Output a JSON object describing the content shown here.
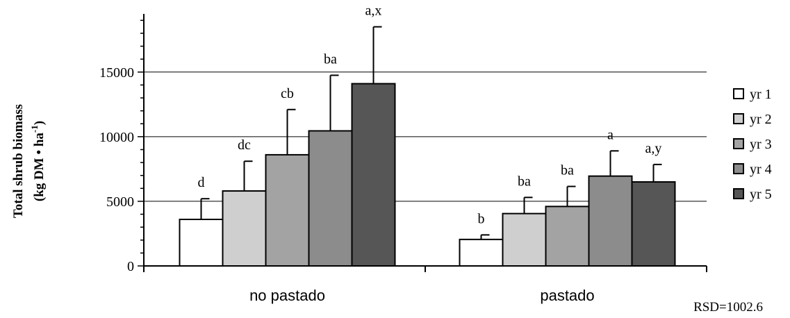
{
  "chart_data": {
    "type": "bar",
    "categories": [
      "no pastado",
      "pastado"
    ],
    "series": [
      {
        "name": "yr 1",
        "color": "#ffffff",
        "values": [
          3600,
          2050
        ],
        "errors": [
          5200,
          2400
        ],
        "letters": [
          "d",
          "b"
        ]
      },
      {
        "name": "yr 2",
        "color": "#cfcfcf",
        "values": [
          5800,
          4050
        ],
        "errors": [
          8100,
          5300
        ],
        "letters": [
          "dc",
          "ba"
        ]
      },
      {
        "name": "yr 3",
        "color": "#a3a3a3",
        "values": [
          8600,
          4600
        ],
        "errors": [
          12100,
          6150
        ],
        "letters": [
          "cb",
          "ba"
        ]
      },
      {
        "name": "yr 4",
        "color": "#8c8c8c",
        "values": [
          10450,
          6950
        ],
        "errors": [
          14750,
          8900
        ],
        "letters": [
          "ba",
          "a"
        ]
      },
      {
        "name": "yr 5",
        "color": "#565656",
        "values": [
          14100,
          6500
        ],
        "errors": [
          18500,
          7850
        ],
        "letters": [
          "a,x",
          "a,y"
        ]
      }
    ],
    "ylabel_line1": "Total shrub biomass",
    "ylabel_line2": "(kg DM • ha",
    "ylabel_sup": "-1",
    "ylabel_close": ")",
    "yticks": [
      "0",
      "5000",
      "10000",
      "15000"
    ],
    "ylim": [
      0,
      19500
    ],
    "grid": true,
    "legend_position": "right",
    "note": "RSD=1002.6"
  }
}
